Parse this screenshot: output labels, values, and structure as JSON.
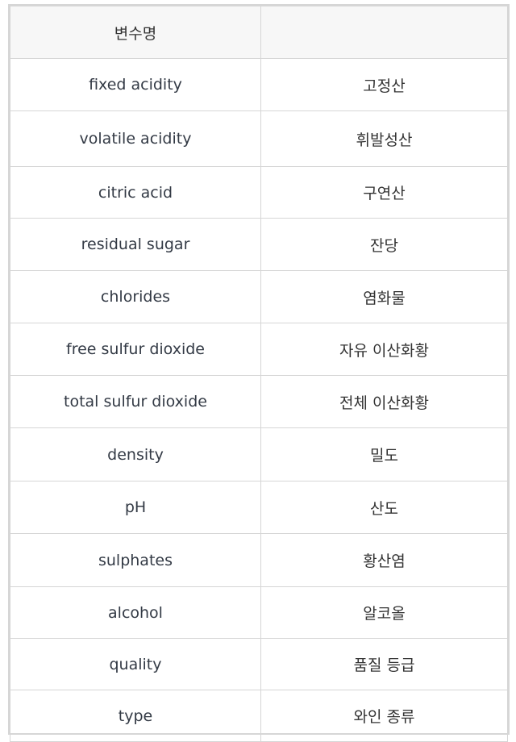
{
  "table": {
    "headers": [
      "변수명",
      ""
    ],
    "rows": [
      [
        "fixed acidity",
        "고정산"
      ],
      [
        "volatile acidity",
        "휘발성산"
      ],
      [
        "citric acid",
        "구연산"
      ],
      [
        "residual sugar",
        "잔당"
      ],
      [
        "chlorides",
        "염화물"
      ],
      [
        "free sulfur dioxide",
        "자유 이산화황"
      ],
      [
        "total sulfur dioxide",
        "전체 이산화황"
      ],
      [
        "density",
        "밀도"
      ],
      [
        "pH",
        "산도"
      ],
      [
        "sulphates",
        "황산염"
      ],
      [
        "alcohol",
        "알코올"
      ],
      [
        "quality",
        "품질 등급"
      ],
      [
        "type",
        "와인 종류"
      ]
    ]
  },
  "colors": {
    "border": "#d6d6d6",
    "header_bg": "#f7f7f7",
    "text": "#333333"
  }
}
